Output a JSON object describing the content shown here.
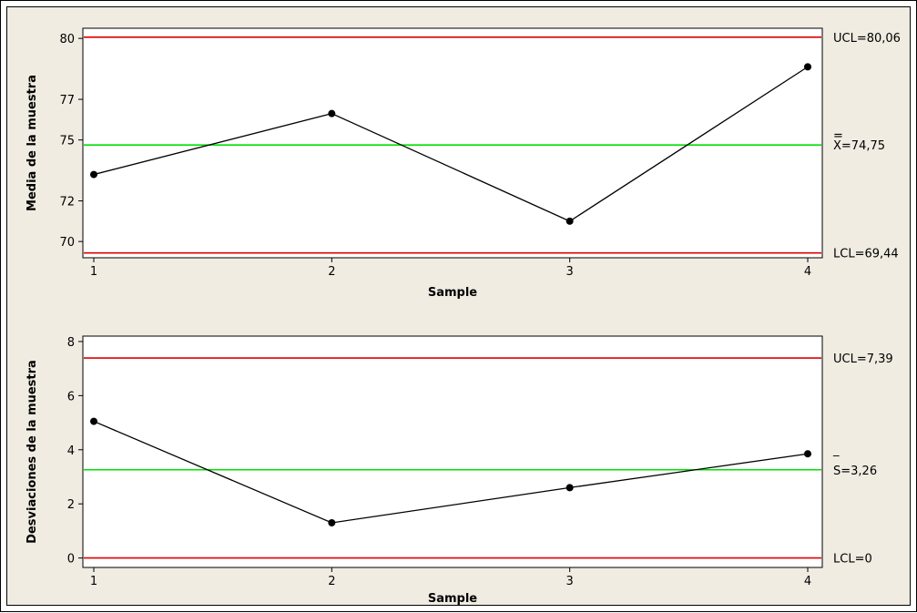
{
  "chart_data": [
    {
      "type": "line",
      "xlabel": "Sample",
      "ylabel": "Media de la muestra",
      "x": [
        1,
        2,
        3,
        4
      ],
      "values": [
        73.3,
        76.3,
        71.0,
        78.6
      ],
      "xticks": [
        "1",
        "2",
        "3",
        "4"
      ],
      "yticks": [
        70,
        72,
        75,
        77,
        80
      ],
      "ylim": [
        69.2,
        80.5
      ],
      "grid": false,
      "reference_lines": [
        {
          "value": 80.06,
          "color": "#e00000",
          "label": "UCL=80,06",
          "label_bar": ""
        },
        {
          "value": 74.75,
          "color": "#00e000",
          "label": "X=74,75",
          "label_bar": "="
        },
        {
          "value": 69.44,
          "color": "#e00000",
          "label": "LCL=69,44",
          "label_bar": ""
        }
      ]
    },
    {
      "type": "line",
      "xlabel": "Sample",
      "ylabel": "Desviaciones de la muestra",
      "x": [
        1,
        2,
        3,
        4
      ],
      "values": [
        5.05,
        1.3,
        2.6,
        3.85
      ],
      "xticks": [
        "1",
        "2",
        "3",
        "4"
      ],
      "yticks": [
        0,
        2,
        4,
        6,
        8
      ],
      "ylim": [
        -0.35,
        8.2
      ],
      "grid": false,
      "reference_lines": [
        {
          "value": 7.39,
          "color": "#e00000",
          "label": "UCL=7,39",
          "label_bar": ""
        },
        {
          "value": 3.26,
          "color": "#00e000",
          "label": "S=3,26",
          "label_bar": "‾"
        },
        {
          "value": 0,
          "color": "#e00000",
          "label": "LCL=0",
          "label_bar": ""
        }
      ]
    }
  ]
}
